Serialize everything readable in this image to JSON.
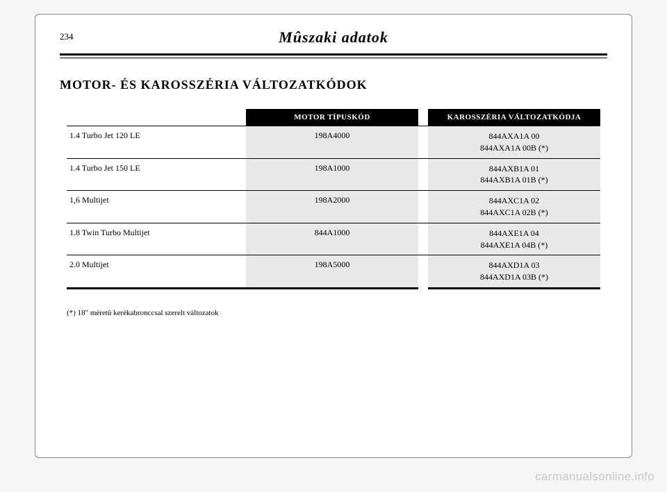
{
  "page_number": "234",
  "header_title": "Mûszaki adatok",
  "section_title": "MOTOR- ÉS KAROSSZÉRIA VÁLTOZATKÓDOK",
  "table": {
    "columns": {
      "engine": "MOTOR TÍPUSKÓD",
      "body": "KAROSSZÉRIA VÁLTOZATKÓDJA"
    },
    "rows": [
      {
        "label": "1.4 Turbo Jet 120 LE",
        "engine": "198A4000",
        "body_line1": "844AXA1A 00",
        "body_line2": "844AXA1A 00B (*)"
      },
      {
        "label": "1.4 Turbo Jet 150 LE",
        "engine": "198A1000",
        "body_line1": "844AXB1A 01",
        "body_line2": "844AXB1A 01B (*)"
      },
      {
        "label": "1,6 Multijet",
        "engine": "198A2000",
        "body_line1": "844AXC1A 02",
        "body_line2": "844AXC1A 02B (*)"
      },
      {
        "label": "1.8 Twin Turbo Multijet",
        "engine": "844A1000",
        "body_line1": "844AXE1A 04",
        "body_line2": "844AXE1A 04B (*)"
      },
      {
        "label": "2.0 Multijet",
        "engine": "198A5000",
        "body_line1": "844AXD1A 03",
        "body_line2": "844AXD1A 03B (*)"
      }
    ]
  },
  "footnote": "(*) 18\" méretû kerékabronccsal szerelt változatok",
  "watermark": "carmanualsonline.info",
  "colors": {
    "page_bg": "#f5f5f5",
    "card_bg": "#ffffff",
    "header_bg": "#000000",
    "header_text": "#ffffff",
    "cell_shade": "#e8e8e8",
    "border": "#000000",
    "watermark": "#c8c8c8"
  }
}
